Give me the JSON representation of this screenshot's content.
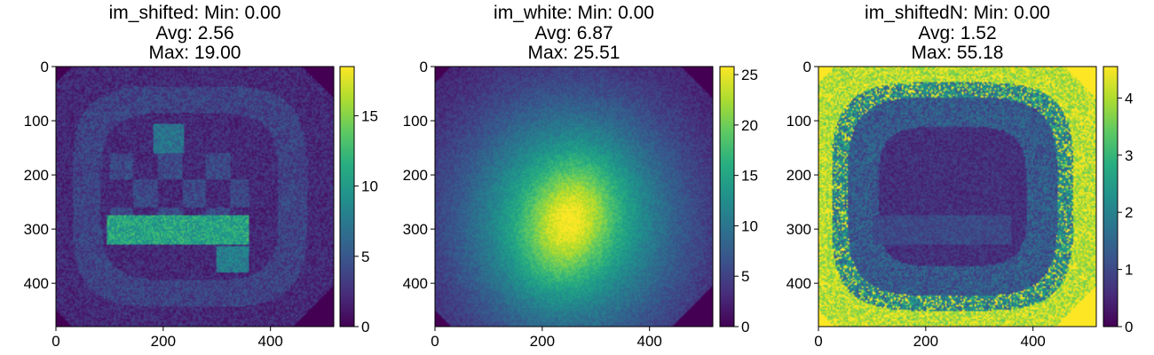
{
  "chart_data": [
    {
      "type": "heatmap",
      "title_lines": [
        "im_shifted: Min: 0.00",
        "Avg: 2.56",
        "Max: 19.00"
      ],
      "xlim": [
        0,
        518
      ],
      "ylim": [
        480,
        0
      ],
      "x_ticks": [
        0,
        200,
        400
      ],
      "y_ticks": [
        0,
        100,
        200,
        300,
        400
      ],
      "colormap": "viridis",
      "colorbar": {
        "vmin": 0,
        "vmax": 18.5,
        "ticks": [
          0,
          5,
          10,
          15
        ]
      },
      "stats": {
        "min": 0.0,
        "avg": 2.56,
        "max": 19.0
      },
      "pattern": "masked-squares",
      "base_level": 0.12,
      "ring_level": 0.2,
      "block_level": 0.22,
      "bright_level": 0.58,
      "seed": 11
    },
    {
      "type": "heatmap",
      "title_lines": [
        "im_white: Min: 0.00",
        "Avg: 6.87",
        "Max: 25.51"
      ],
      "xlim": [
        0,
        518
      ],
      "ylim": [
        480,
        0
      ],
      "x_ticks": [
        0,
        200,
        400
      ],
      "y_ticks": [
        0,
        100,
        200,
        300,
        400
      ],
      "colormap": "viridis",
      "colorbar": {
        "vmin": 0,
        "vmax": 25.8,
        "ticks": [
          0,
          5,
          10,
          15,
          20,
          25
        ]
      },
      "stats": {
        "min": 0.0,
        "avg": 6.87,
        "max": 25.51
      },
      "pattern": "gaussian-blob",
      "peak_center": [
        250,
        285
      ],
      "seed": 29
    },
    {
      "type": "heatmap",
      "title_lines": [
        "im_shiftedN: Min: 0.00",
        "Avg: 1.52",
        "Max: 55.18"
      ],
      "xlim": [
        0,
        518
      ],
      "ylim": [
        480,
        0
      ],
      "x_ticks": [
        0,
        200,
        400
      ],
      "y_ticks": [
        0,
        100,
        200,
        300,
        400
      ],
      "colormap": "viridis",
      "colorbar": {
        "vmin": 0,
        "vmax": 4.55,
        "ticks": [
          0,
          1,
          2,
          3,
          4
        ]
      },
      "stats": {
        "min": 0.0,
        "avg": 1.52,
        "max": 55.18
      },
      "pattern": "normalized-saturated-edges",
      "seed": 47
    }
  ]
}
